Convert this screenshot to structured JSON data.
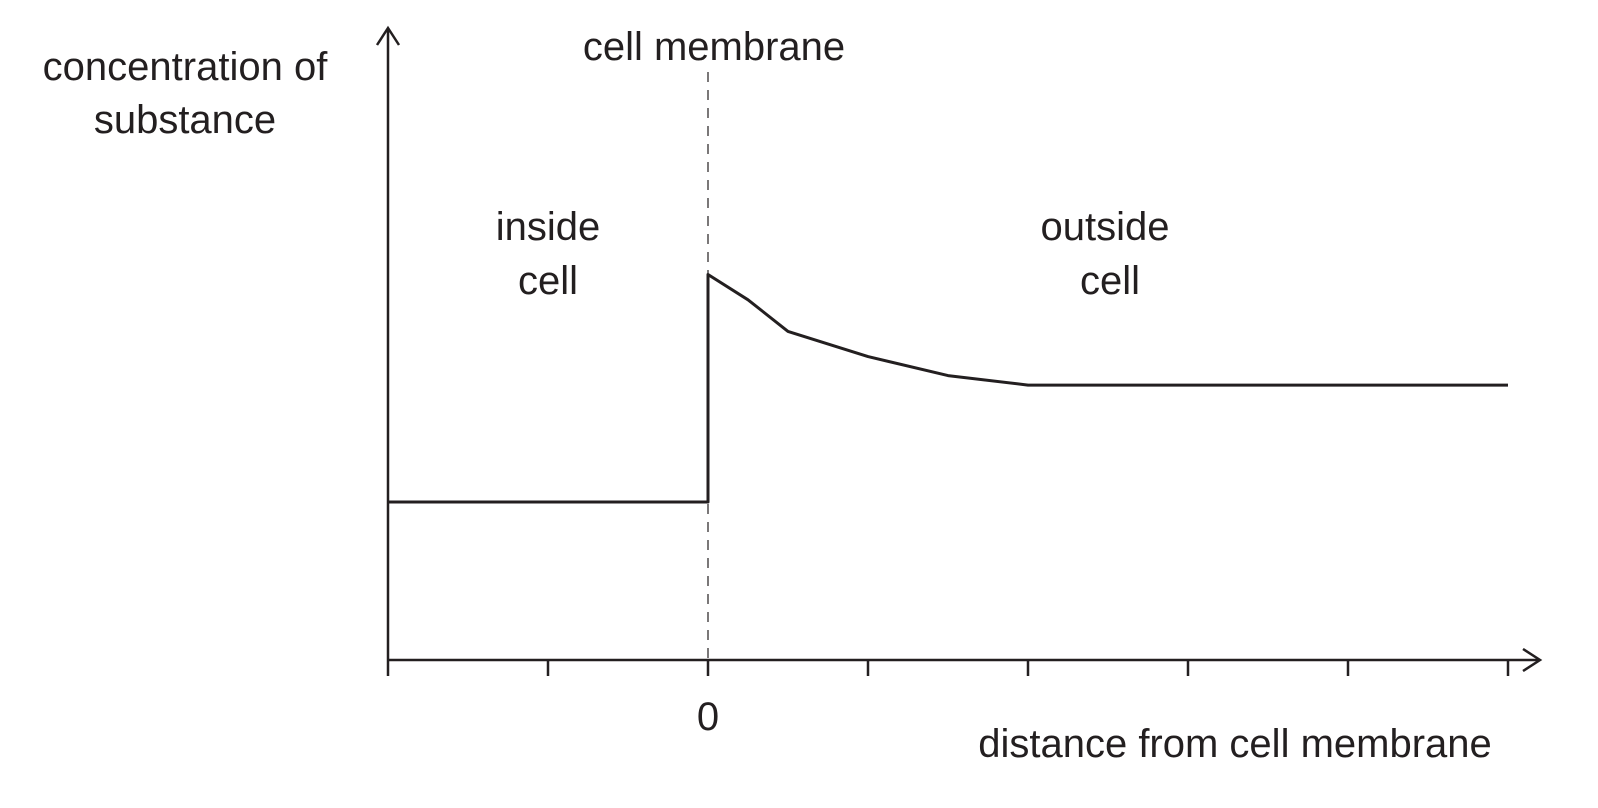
{
  "chart_data": {
    "type": "line",
    "y_label": [
      "concentration of",
      "substance"
    ],
    "x_label": "distance from cell membrane",
    "annotations": [
      {
        "text": "cell membrane",
        "x": 0
      },
      {
        "text": [
          "inside",
          "cell"
        ]
      },
      {
        "text": [
          "outside",
          "cell"
        ]
      }
    ],
    "x": [
      -2,
      0,
      0,
      0.25,
      0.5,
      1,
      1.5,
      2,
      5
    ],
    "series": [
      {
        "color": "#231f20",
        "values": [
          2.5,
          2.5,
          6.1,
          5.7,
          5.2,
          4.8,
          4.5,
          4.35,
          4.35
        ]
      }
    ],
    "xlim": [
      -2,
      5.2
    ],
    "ylim": [
      0,
      10
    ],
    "xticks": [
      {
        "value": -2,
        "label": null
      },
      {
        "value": -1,
        "label": null
      },
      0,
      {
        "value": 1,
        "label": null
      },
      {
        "value": 2,
        "label": null
      },
      {
        "value": 3,
        "label": null
      },
      {
        "value": 4,
        "label": null
      },
      {
        "value": 5,
        "label": null
      }
    ]
  }
}
